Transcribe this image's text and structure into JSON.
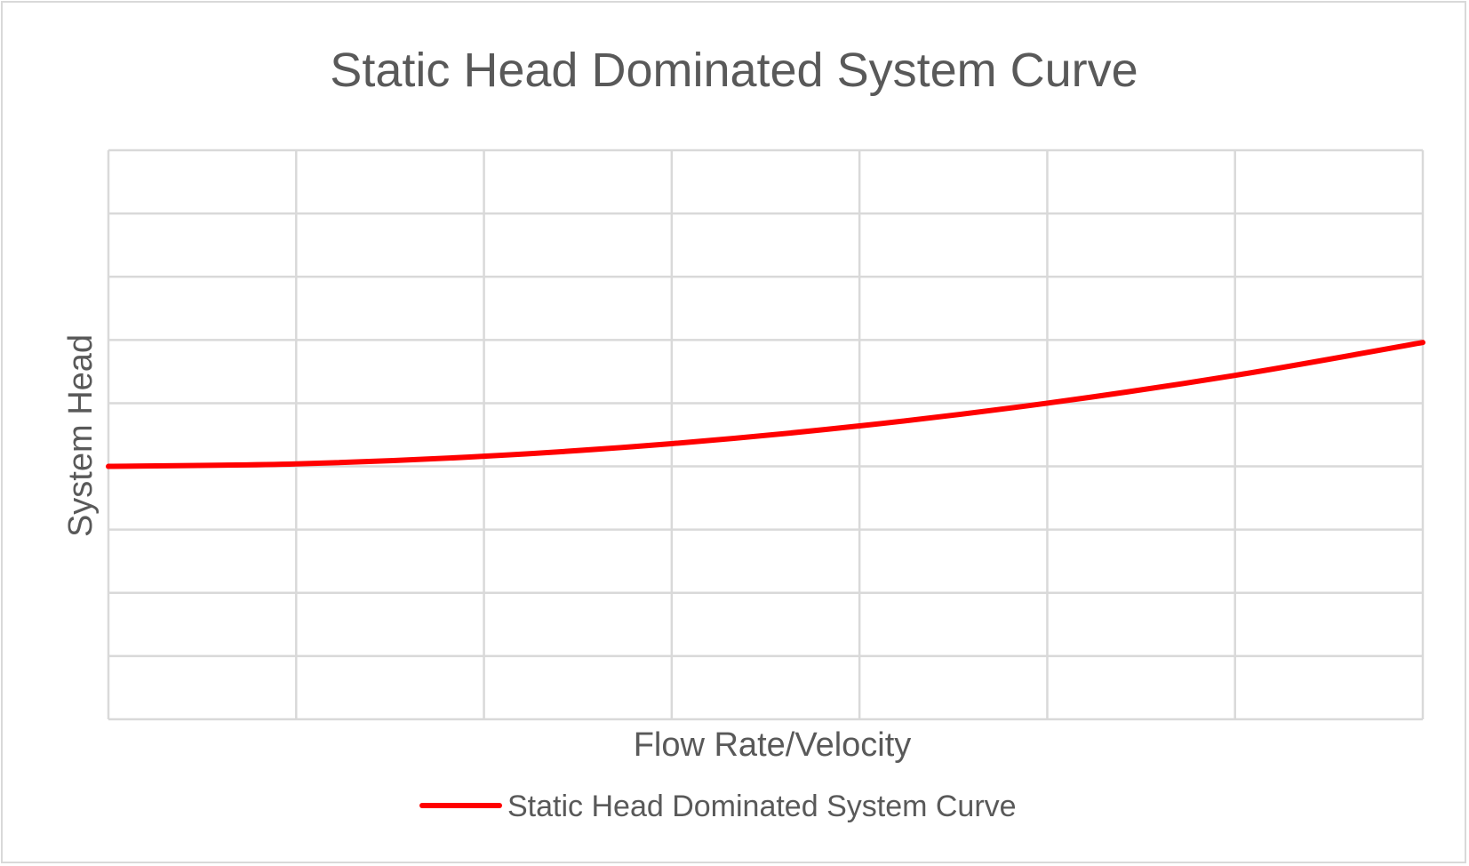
{
  "chart_data": {
    "type": "line",
    "title": "Static Head Dominated System Curve",
    "xlabel": "Flow Rate/Velocity",
    "ylabel": "System Head",
    "x_categories": 8,
    "xlim": [
      0,
      7
    ],
    "ylim": [
      0,
      9
    ],
    "x_tick_labels_shown": false,
    "y_tick_labels_shown": false,
    "grid": true,
    "legend_position": "bottom",
    "series": [
      {
        "name": "Static Head Dominated System Curve",
        "color": "#ff0000",
        "x": [
          0,
          1,
          2,
          3,
          4,
          5,
          6,
          7
        ],
        "values": [
          4.0,
          4.04,
          4.16,
          4.36,
          4.64,
          5.0,
          5.44,
          5.96
        ]
      }
    ]
  },
  "colors": {
    "grid": "#d9d9d9",
    "text": "#595959",
    "series": "#ff0000",
    "border": "#d9d9d9"
  }
}
